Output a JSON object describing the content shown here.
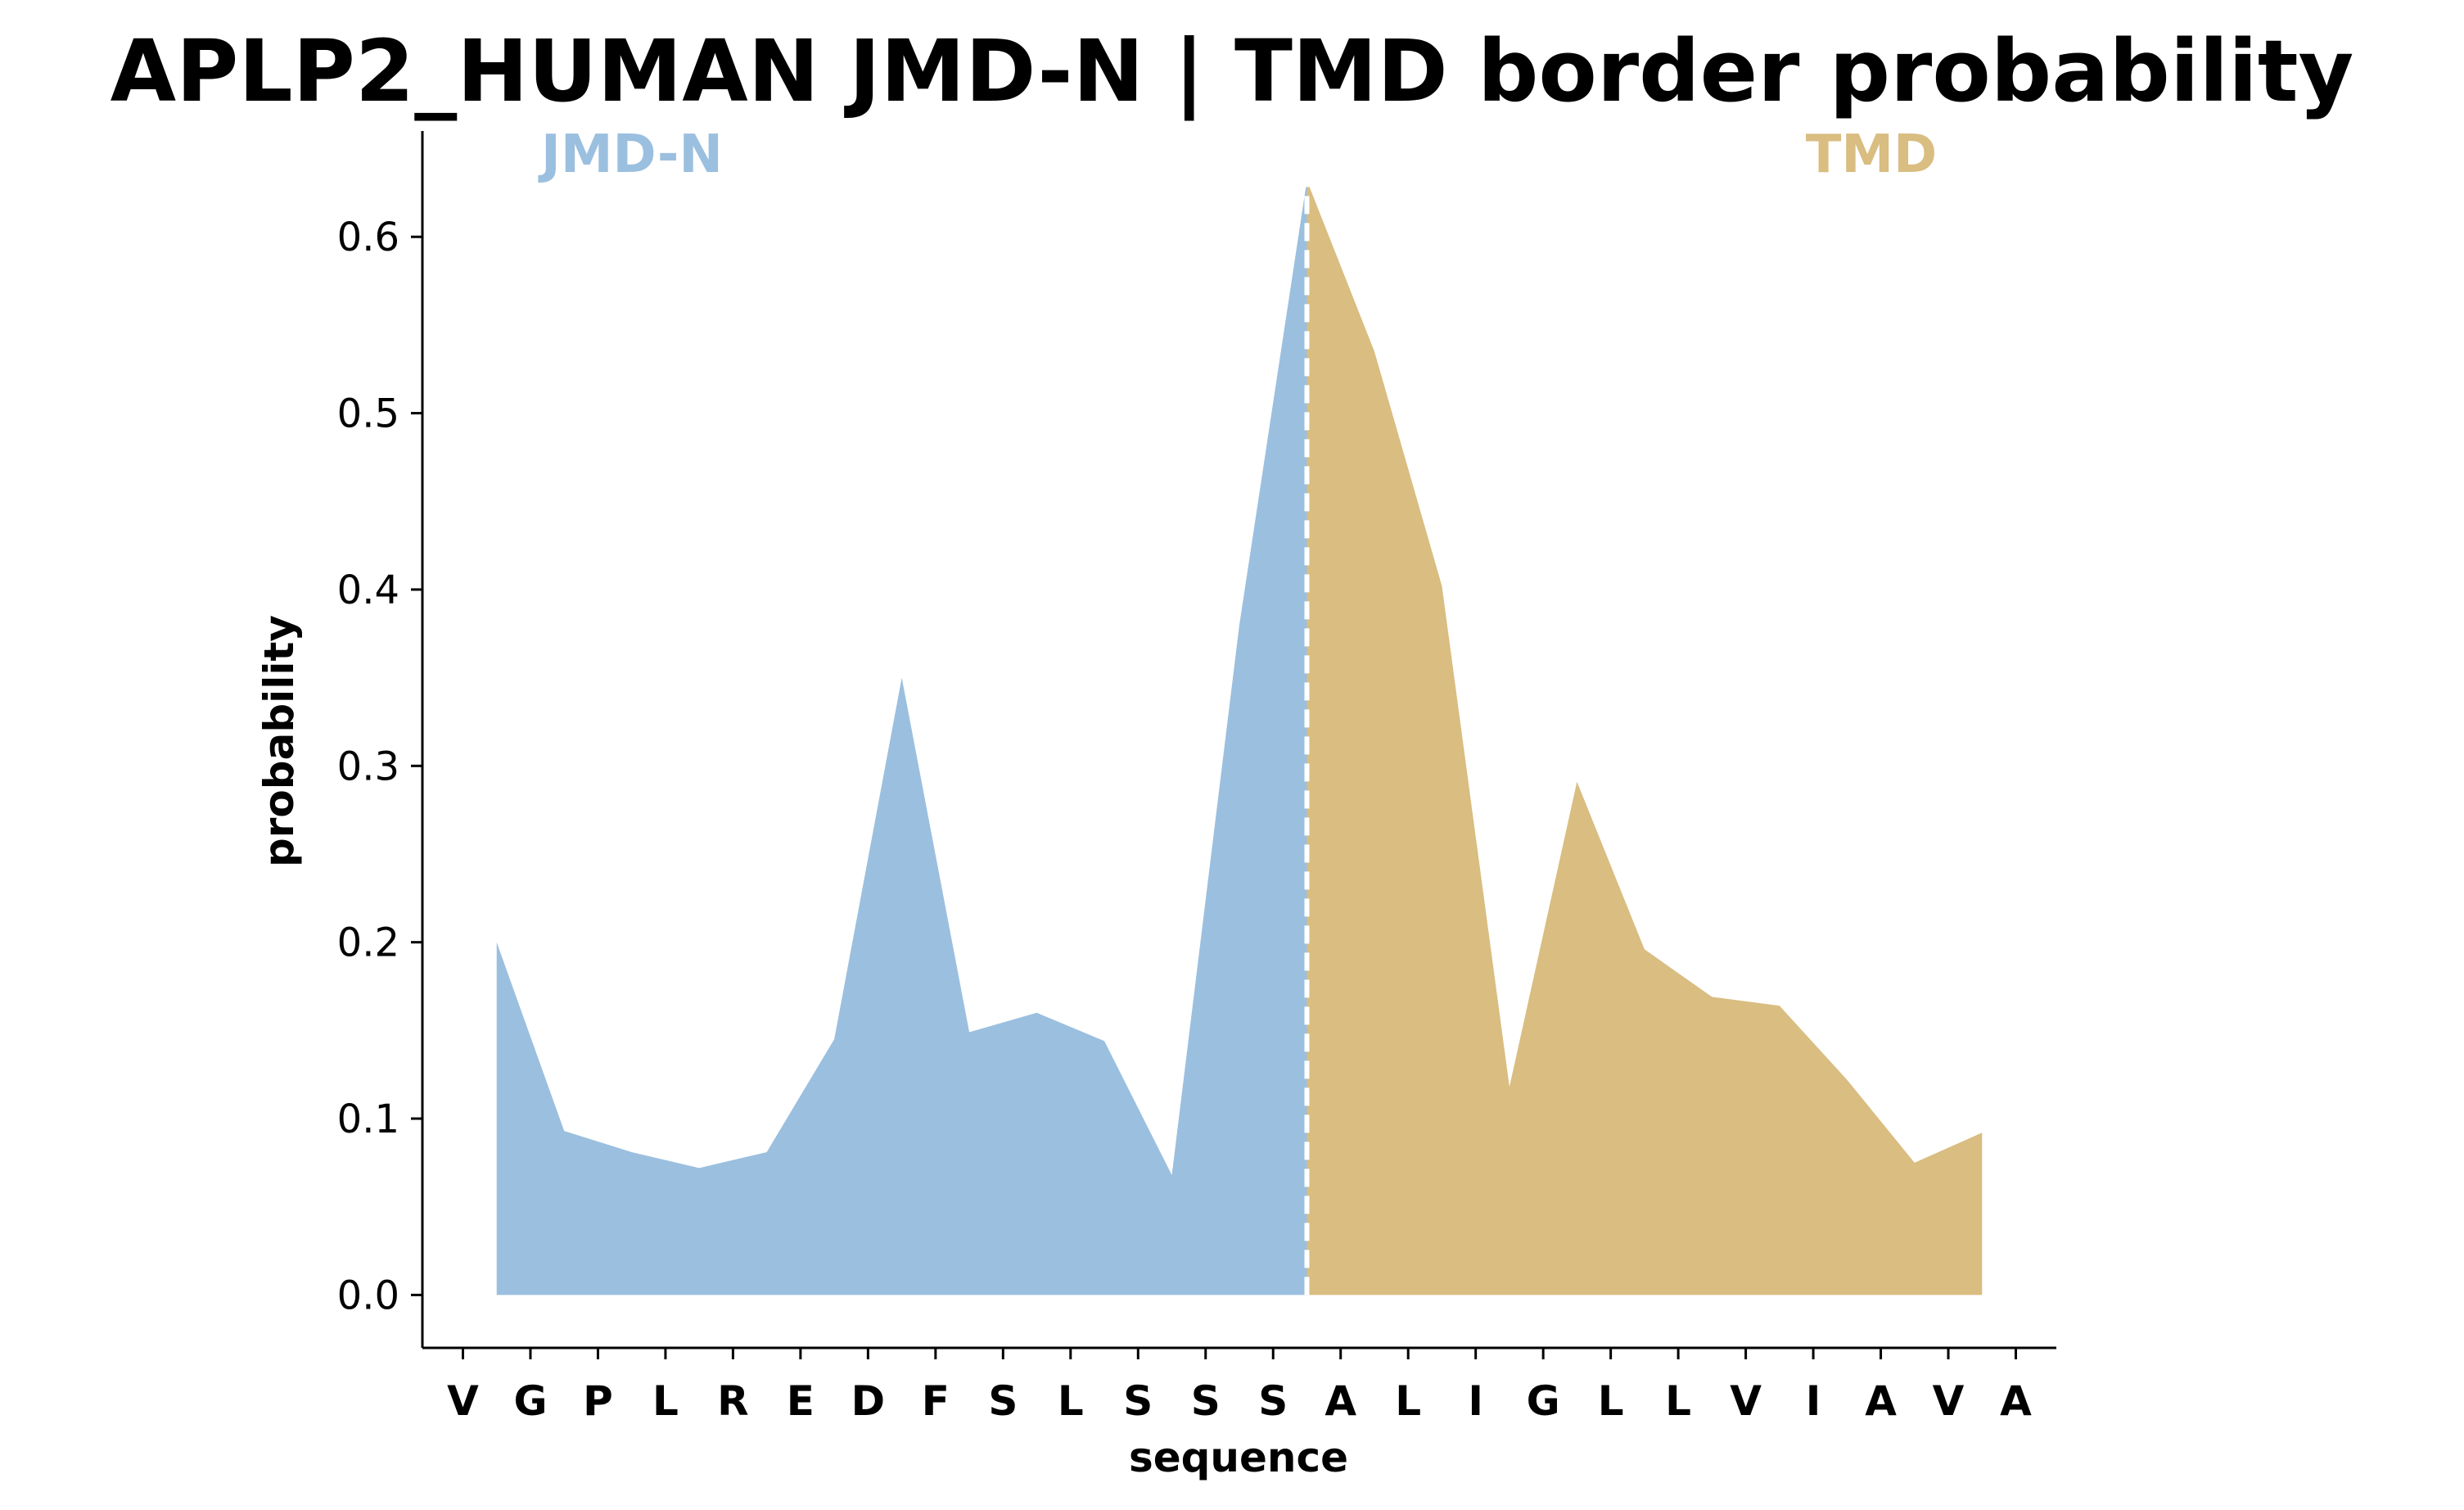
{
  "chart_data": {
    "type": "area",
    "title": "APLP2_HUMAN JMD-N | TMD border probability",
    "xlabel": "sequence",
    "ylabel": "probability",
    "ylim": [
      -0.03,
      0.66
    ],
    "yticks": [
      0.0,
      0.1,
      0.2,
      0.3,
      0.4,
      0.5,
      0.6
    ],
    "ytick_labels": [
      "0.0",
      "0.1",
      "0.2",
      "0.3",
      "0.4",
      "0.5",
      "0.6"
    ],
    "categories": [
      "V",
      "G",
      "P",
      "L",
      "R",
      "E",
      "D",
      "F",
      "S",
      "L",
      "S",
      "S",
      "S",
      "A",
      "L",
      "I",
      "G",
      "L",
      "L",
      "V",
      "I",
      "A",
      "V",
      "A"
    ],
    "grid": false,
    "border_x": 12.5,
    "border_style": "white dashed vertical line",
    "regions": [
      {
        "name": "JMD-N",
        "color": "#9bbfdf",
        "x": [
          0.5,
          1.5,
          2.5,
          3.5,
          4.5,
          5.5,
          6.5,
          7.5,
          8.5,
          9.5,
          10.5,
          11.5,
          12.5
        ],
        "values": [
          0.2,
          0.093,
          0.081,
          0.072,
          0.081,
          0.145,
          0.35,
          0.149,
          0.16,
          0.144,
          0.068,
          0.38,
          0.632
        ]
      },
      {
        "name": "TMD",
        "color": "#d9bd81",
        "x": [
          12.5,
          13.5,
          14.5,
          15.5,
          16.5,
          17.5,
          18.5,
          19.5,
          20.5,
          21.5,
          22.5
        ],
        "values": [
          0.632,
          0.535,
          0.402,
          0.118,
          0.291,
          0.196,
          0.169,
          0.164,
          0.122,
          0.075,
          0.092
        ]
      }
    ]
  }
}
